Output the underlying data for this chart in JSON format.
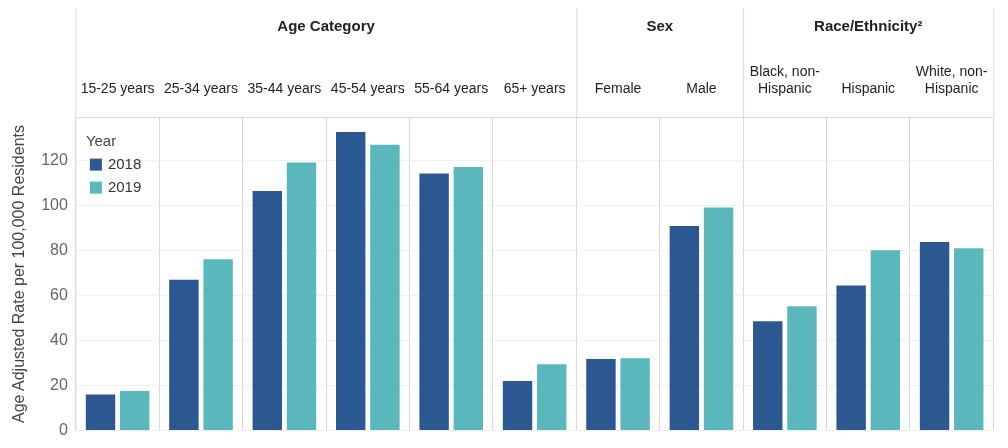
{
  "chart_data": {
    "type": "bar",
    "ylabel": "Age Adjusted Rate per 100,000 Residents",
    "legend_title": "Year",
    "categories": [
      "15-25 years",
      "25-34 years",
      "35-44 years",
      "45-54 years",
      "55-64 years",
      "65+ years",
      "Female",
      "Male",
      "Black, non-Hispanic",
      "Hispanic",
      "White, non-Hispanic"
    ],
    "series": [
      {
        "name": "2018",
        "color": "#2b5891",
        "values": [
          16,
          67,
          106.4,
          132.6,
          114.2,
          21.9,
          31.7,
          90.8,
          48.5,
          64.4,
          83.7
        ]
      },
      {
        "name": "2019",
        "color": "#5ab7bb",
        "values": [
          17.5,
          76,
          119,
          126.9,
          117,
          29.4,
          32.1,
          99,
          55.2,
          80,
          80.9
        ]
      }
    ],
    "annotations": [
      "Age Category",
      "Sex",
      "Race/Ethnicity²"
    ],
    "ylim": [
      0,
      139
    ],
    "yticks": [
      0,
      20,
      40,
      60,
      80,
      100,
      120
    ],
    "grid": true,
    "legend": "top left"
  }
}
